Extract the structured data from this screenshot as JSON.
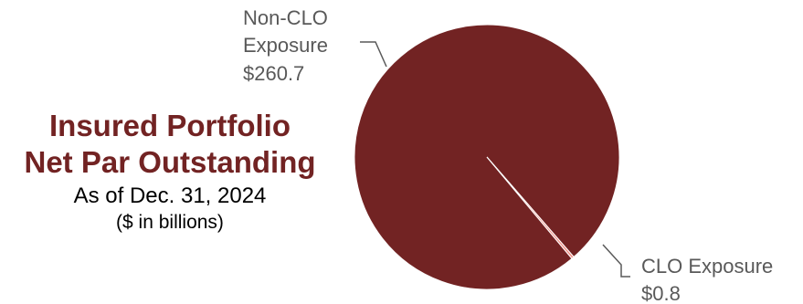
{
  "title": {
    "line1": "Insured Portfolio",
    "line2": "Net Par Outstanding",
    "subtitle": "As of Dec. 31, 2024",
    "units": "($ in billions)"
  },
  "chart_data": {
    "type": "pie",
    "slices": [
      {
        "name_lines": [
          "Non-CLO",
          "Exposure"
        ],
        "value": 260.7,
        "value_label": "$260.7",
        "color": "#722323"
      },
      {
        "name_lines": [
          "CLO Exposure"
        ],
        "value": 0.8,
        "value_label": "$0.8",
        "color": "#f2948a"
      }
    ]
  }
}
